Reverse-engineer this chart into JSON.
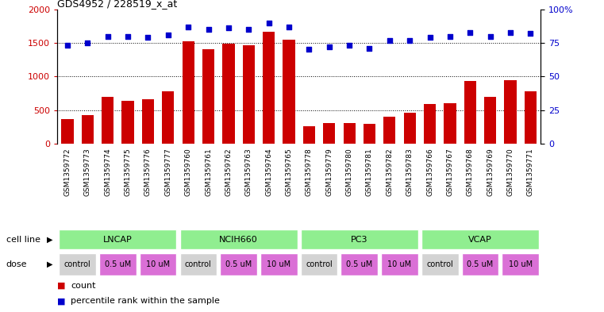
{
  "title": "GDS4952 / 228519_x_at",
  "samples": [
    "GSM1359772",
    "GSM1359773",
    "GSM1359774",
    "GSM1359775",
    "GSM1359776",
    "GSM1359777",
    "GSM1359760",
    "GSM1359761",
    "GSM1359762",
    "GSM1359763",
    "GSM1359764",
    "GSM1359765",
    "GSM1359778",
    "GSM1359779",
    "GSM1359780",
    "GSM1359781",
    "GSM1359782",
    "GSM1359783",
    "GSM1359766",
    "GSM1359767",
    "GSM1359768",
    "GSM1359769",
    "GSM1359770",
    "GSM1359771"
  ],
  "counts": [
    360,
    420,
    690,
    640,
    660,
    780,
    1530,
    1410,
    1490,
    1470,
    1670,
    1550,
    260,
    310,
    310,
    295,
    400,
    460,
    590,
    600,
    930,
    690,
    950,
    775
  ],
  "percentile": [
    73,
    75,
    80,
    80,
    79,
    81,
    87,
    85,
    86,
    85,
    90,
    87,
    70,
    72,
    73,
    71,
    77,
    77,
    79,
    80,
    83,
    80,
    83,
    82
  ],
  "cell_lines": [
    {
      "name": "LNCAP",
      "start": 0,
      "end": 6,
      "color": "#90ee90"
    },
    {
      "name": "NCIH660",
      "start": 6,
      "end": 12,
      "color": "#90ee90"
    },
    {
      "name": "PC3",
      "start": 12,
      "end": 18,
      "color": "#90ee90"
    },
    {
      "name": "VCAP",
      "start": 18,
      "end": 24,
      "color": "#90ee90"
    }
  ],
  "doses": [
    {
      "name": "control",
      "start": 0,
      "end": 2,
      "color": "#d3d3d3"
    },
    {
      "name": "0.5 uM",
      "start": 2,
      "end": 4,
      "color": "#da70d6"
    },
    {
      "name": "10 uM",
      "start": 4,
      "end": 6,
      "color": "#da70d6"
    },
    {
      "name": "control",
      "start": 6,
      "end": 8,
      "color": "#d3d3d3"
    },
    {
      "name": "0.5 uM",
      "start": 8,
      "end": 10,
      "color": "#da70d6"
    },
    {
      "name": "10 uM",
      "start": 10,
      "end": 12,
      "color": "#da70d6"
    },
    {
      "name": "control",
      "start": 12,
      "end": 14,
      "color": "#d3d3d3"
    },
    {
      "name": "0.5 uM",
      "start": 14,
      "end": 16,
      "color": "#da70d6"
    },
    {
      "name": "10 uM",
      "start": 16,
      "end": 18,
      "color": "#da70d6"
    },
    {
      "name": "control",
      "start": 18,
      "end": 20,
      "color": "#d3d3d3"
    },
    {
      "name": "0.5 uM",
      "start": 20,
      "end": 22,
      "color": "#da70d6"
    },
    {
      "name": "10 uM",
      "start": 22,
      "end": 24,
      "color": "#da70d6"
    }
  ],
  "bar_color": "#cc0000",
  "dot_color": "#0000cc",
  "left_ylim": [
    0,
    2000
  ],
  "right_ylim": [
    0,
    100
  ],
  "left_yticks": [
    0,
    500,
    1000,
    1500,
    2000
  ],
  "right_yticks": [
    0,
    25,
    50,
    75,
    100
  ],
  "right_yticklabels": [
    "0",
    "25",
    "50",
    "75",
    "100%"
  ],
  "grid_values": [
    500,
    1000,
    1500
  ],
  "dot_scale": 18,
  "legend_count_label": "count",
  "legend_pct_label": "percentile rank within the sample",
  "cell_line_label": "cell line",
  "dose_label": "dose",
  "sample_bg_color": "#c8c8c8",
  "fig_bg_color": "#ffffff"
}
